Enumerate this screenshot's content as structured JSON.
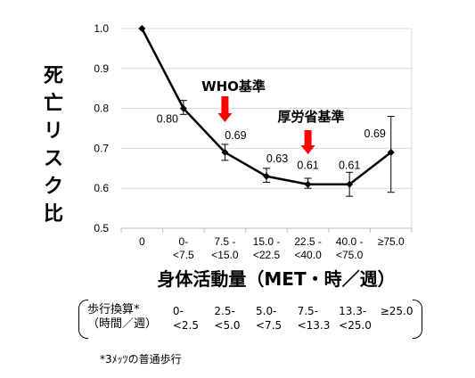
{
  "chart_data": {
    "type": "line",
    "categories": [
      "0",
      "0-\n<7.5",
      "7.5 -\n<15.0",
      "15.0 -\n<22.5",
      "22.5 -\n<40.0",
      "40.0 -\n<75.0",
      "≥75.0"
    ],
    "values": [
      1.0,
      0.8,
      0.69,
      0.63,
      0.61,
      0.61,
      0.69
    ],
    "data_labels": [
      "",
      "0.80",
      "0.69",
      "0.63",
      "0.61",
      "0.61",
      "0.69"
    ],
    "error_low": [
      1.0,
      0.785,
      0.67,
      0.615,
      0.6,
      0.58,
      0.59
    ],
    "error_high": [
      1.0,
      0.82,
      0.71,
      0.65,
      0.625,
      0.64,
      0.78
    ],
    "ylim": [
      0.5,
      1.0
    ],
    "yticks": [
      "0.5",
      "0.6",
      "0.7",
      "0.8",
      "0.9",
      "1.0"
    ],
    "ylabel": "死亡リスク比",
    "xlabel": "身体活動量（MET・時／週）",
    "grid": true,
    "line_color": "#000000",
    "arrow_color": "#ff0000",
    "annotations": [
      {
        "text": "WHO基準",
        "category_index": 2
      },
      {
        "text": "厚労省基準",
        "category_index": 4
      }
    ]
  },
  "walking": {
    "title_line1": "歩行換算*",
    "title_line2": "（時間／週）",
    "cells": [
      "0-\n<2.5",
      "2.5-\n<5.0",
      "5.0-\n<7.5",
      "7.5-\n<13.3",
      "13.3-\n<25.0",
      "≥25.0"
    ]
  },
  "footnote": "*3ﾒｯﾂの普通歩行"
}
